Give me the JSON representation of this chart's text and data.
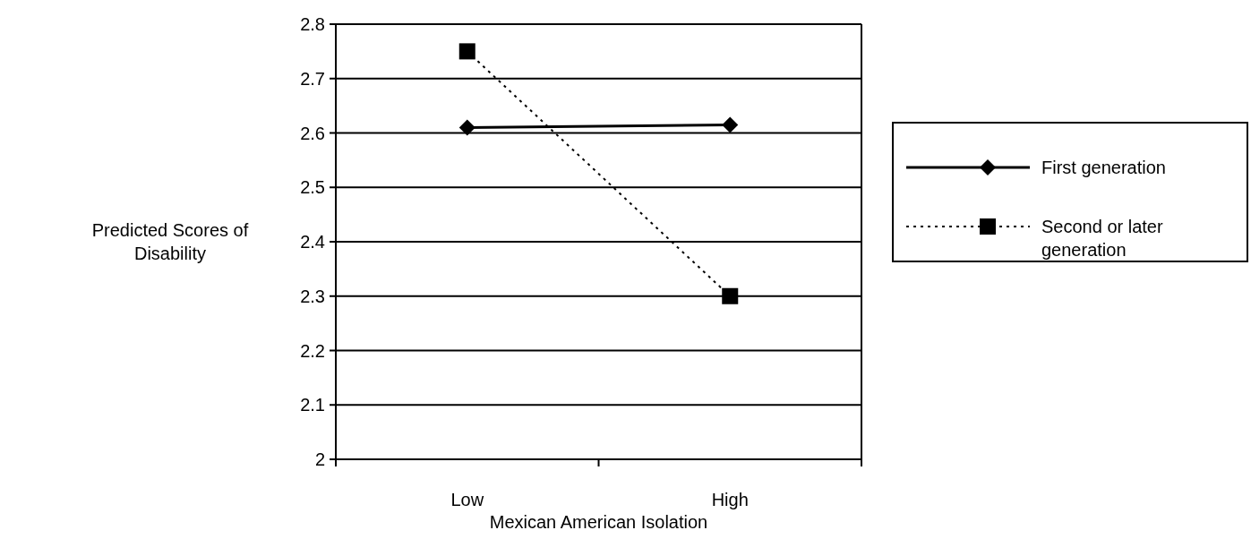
{
  "chart_data": {
    "type": "line",
    "xlabel": "Mexican American Isolation",
    "ylabel": "Predicted Scores of Disability",
    "categories": [
      "Low",
      "High"
    ],
    "ylim": [
      2,
      2.8
    ],
    "yticks": [
      {
        "value": 2,
        "label": "2"
      },
      2.1,
      2.2,
      2.3,
      2.4,
      2.5,
      2.6,
      2.7,
      2.8
    ],
    "grid": "y",
    "legend": "right",
    "series": [
      {
        "name": "First generation",
        "color": "#000000",
        "values": [
          2.61,
          2.615
        ],
        "marker": "diamond",
        "line_style": "solid"
      },
      {
        "name": "Second or later generation",
        "color": "#000000",
        "values": [
          2.75,
          2.3
        ],
        "marker": "square",
        "line_style": "dotted"
      }
    ]
  }
}
